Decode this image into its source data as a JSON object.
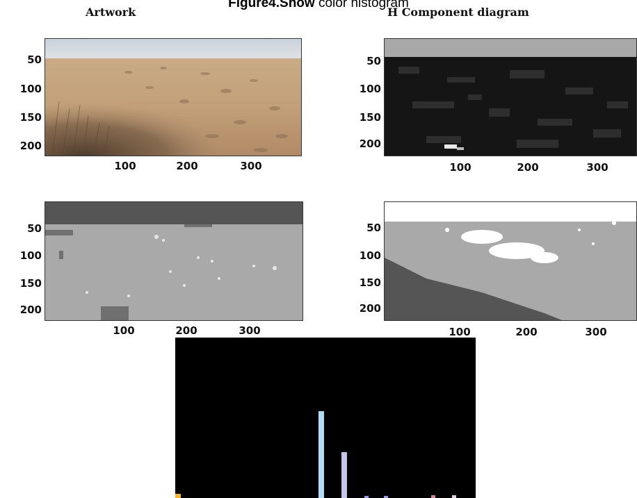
{
  "figure": {
    "caption_bold": "Figure4.Show",
    "caption_rest": " color histogram"
  },
  "panels": [
    {
      "title": "Artwork",
      "y_ticks": [
        "50",
        "100",
        "150",
        "200"
      ],
      "x_ticks": [
        "100",
        "200",
        "300"
      ]
    },
    {
      "title": "H Component diagram",
      "y_ticks": [
        "50",
        "100",
        "150",
        "200"
      ],
      "x_ticks": [
        "100",
        "200",
        "300"
      ]
    },
    {
      "title": "",
      "y_ticks": [
        "50",
        "100",
        "150",
        "200"
      ],
      "x_ticks": [
        "100",
        "200",
        "300"
      ]
    },
    {
      "title": "",
      "y_ticks": [
        "50",
        "100",
        "150",
        "200"
      ],
      "x_ticks": [
        "100",
        "200",
        "300"
      ]
    }
  ],
  "histogram": {
    "background": "#000000",
    "bar_colors": [
      "#f2b632",
      "#b3dcf2",
      "#c4c4ec",
      "#9a9ae0",
      "#d08a9a",
      "#e0d0e0"
    ]
  }
}
